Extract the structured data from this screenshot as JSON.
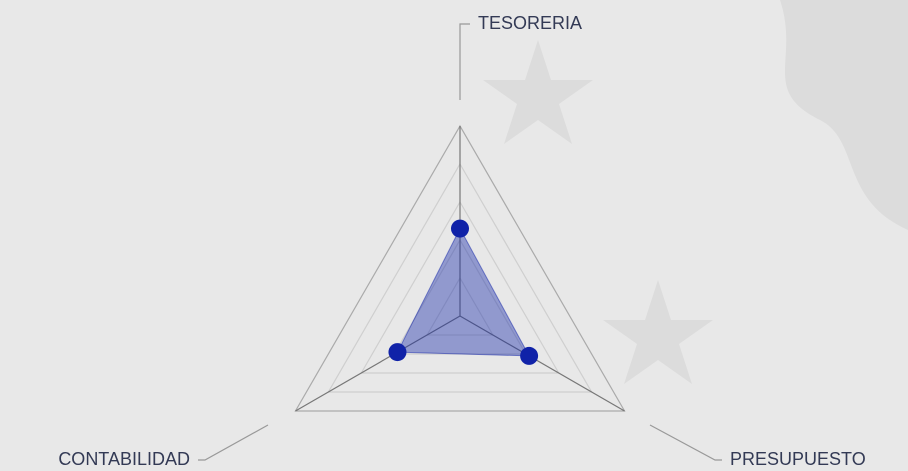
{
  "chart_data": {
    "type": "radar",
    "categories": [
      "TESORERIA",
      "PRESUPUESTO",
      "CONTABILIDAD"
    ],
    "series": [
      {
        "color": "#1022a8",
        "values": [
          2.3,
          2.1,
          1.9
        ]
      }
    ],
    "ylim": [
      0,
      5
    ],
    "yticks": [
      1,
      2,
      3,
      4,
      5
    ],
    "grid": true
  }
}
